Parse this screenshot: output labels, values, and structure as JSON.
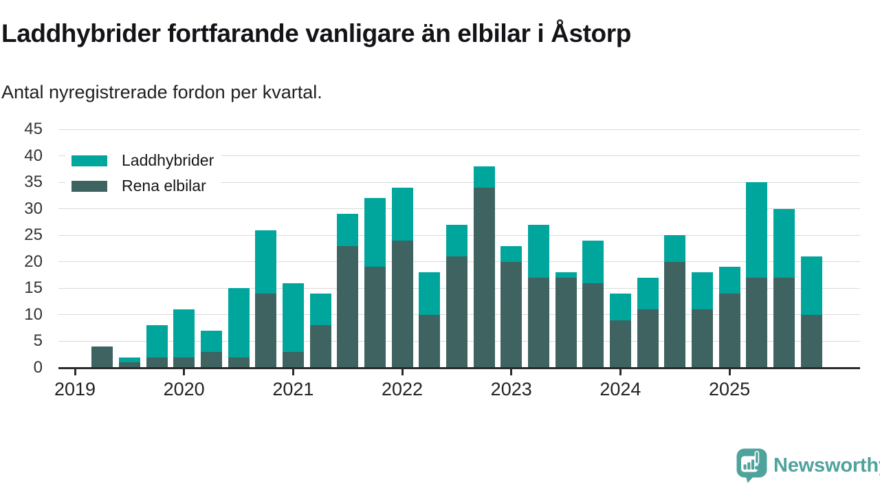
{
  "title": "Laddhybrider fortfarande vanligare än elbilar i Åstorp",
  "subtitle": "Antal nyregistrerade fordon per kvartal.",
  "legend": [
    {
      "name": "Laddhybrider",
      "color": "#00a59c"
    },
    {
      "name": "Rena elbilar",
      "color": "#3e6360"
    }
  ],
  "branding": {
    "logo_text": "Newsworthy",
    "logo_color": "#4fa39c",
    "logo_icon": "newsworthy-speech-bubble-bar-chart-icon"
  },
  "chart_data": {
    "type": "bar",
    "stacked": true,
    "title": "Laddhybrider fortfarande vanligare än elbilar i Åstorp",
    "subtitle": "Antal nyregistrerade fordon per kvartal.",
    "xlabel": "",
    "ylabel": "",
    "ylim": [
      0,
      45
    ],
    "yticks": [
      0,
      5,
      10,
      15,
      20,
      25,
      30,
      35,
      40,
      45
    ],
    "grid": true,
    "legend_position": "top-left",
    "x": [
      "2019 Q1",
      "2019 Q2",
      "2019 Q3",
      "2019 Q4",
      "2020 Q1",
      "2020 Q2",
      "2020 Q3",
      "2020 Q4",
      "2021 Q1",
      "2021 Q2",
      "2021 Q3",
      "2021 Q4",
      "2022 Q1",
      "2022 Q2",
      "2022 Q3",
      "2022 Q4",
      "2023 Q1",
      "2023 Q2",
      "2023 Q3",
      "2023 Q4",
      "2024 Q1",
      "2024 Q2",
      "2024 Q3",
      "2024 Q4",
      "2025 Q1",
      "2025 Q2",
      "2025 Q3",
      "2025 Q4"
    ],
    "xticks": [
      "2019",
      "2020",
      "2021",
      "2022",
      "2023",
      "2024",
      "2025"
    ],
    "series": [
      {
        "name": "Laddhybrider",
        "color": "#00a59c",
        "stack_order": "top",
        "values": [
          0,
          0,
          1,
          6,
          9,
          4,
          13,
          12,
          13,
          6,
          6,
          13,
          10,
          8,
          6,
          4,
          3,
          10,
          1,
          8,
          5,
          6,
          5,
          7,
          5,
          18,
          13,
          11
        ]
      },
      {
        "name": "Rena elbilar",
        "color": "#3e6360",
        "stack_order": "bottom",
        "values": [
          0,
          4,
          1,
          2,
          2,
          3,
          2,
          14,
          3,
          8,
          23,
          19,
          24,
          10,
          21,
          34,
          20,
          17,
          17,
          16,
          9,
          11,
          20,
          11,
          14,
          17,
          17,
          10
        ]
      }
    ],
    "totals": [
      0,
      4,
      2,
      8,
      11,
      7,
      15,
      26,
      16,
      14,
      29,
      32,
      34,
      18,
      27,
      38,
      23,
      27,
      18,
      24,
      14,
      17,
      25,
      18,
      19,
      35,
      30,
      21
    ]
  }
}
